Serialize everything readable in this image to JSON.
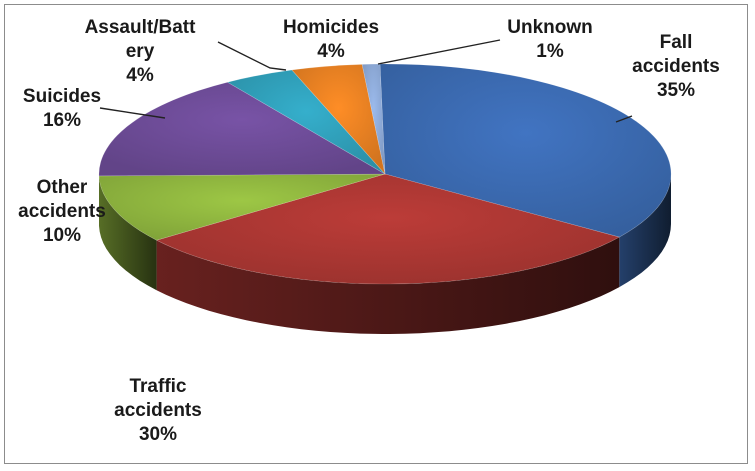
{
  "chart_data": {
    "type": "pie",
    "slices": [
      {
        "name": "Fall accidents",
        "value": 35,
        "label_lines": [
          "Fall",
          "accidents",
          "35%"
        ],
        "color": "#3a68ad"
      },
      {
        "name": "Traffic accidents",
        "value": 30,
        "label_lines": [
          "Traffic",
          "accidents",
          "30%"
        ],
        "color": "#a83632"
      },
      {
        "name": "Other accidents",
        "value": 10,
        "label_lines": [
          "Other",
          "accidents",
          "10%"
        ],
        "color": "#8cb23e"
      },
      {
        "name": "Suicides",
        "value": 16,
        "label_lines": [
          "Suicides",
          "16%"
        ],
        "color": "#6b4a94"
      },
      {
        "name": "Assault/Battery",
        "value": 4,
        "label_lines": [
          "Assault/Batt",
          "ery",
          "4%"
        ],
        "color": "#2f9cb6"
      },
      {
        "name": "Homicides",
        "value": 4,
        "label_lines": [
          "Homicides",
          "4%"
        ],
        "color": "#e37e22"
      },
      {
        "name": "Unknown",
        "value": 1,
        "label_lines": [
          "Unknown",
          "1%"
        ],
        "color": "#8aa6d3"
      }
    ]
  }
}
